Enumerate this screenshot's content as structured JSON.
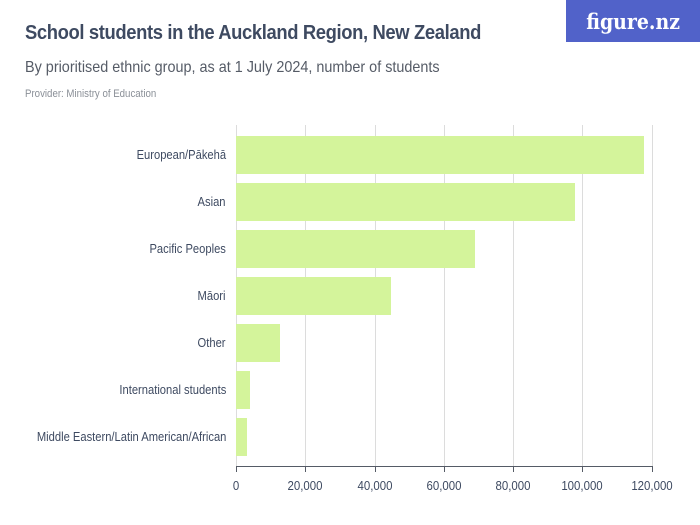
{
  "header": {
    "title": "School students in the Auckland Region, New Zealand",
    "subtitle": "By prioritised ethnic group, as at 1 July 2024, number of students",
    "provider": "Provider: Ministry of Education",
    "logo": "figure.nz"
  },
  "axis": {
    "ticks": [
      "0",
      "20,000",
      "40,000",
      "60,000",
      "80,000",
      "100,000",
      "120,000"
    ]
  },
  "colors": {
    "bar": "#d4f49b",
    "logo_bg": "#5162c9",
    "text": "#3e4a61"
  },
  "chart_data": {
    "type": "bar",
    "orientation": "horizontal",
    "title": "School students in the Auckland Region, New Zealand",
    "subtitle": "By prioritised ethnic group, as at 1 July 2024, number of students",
    "source": "Provider: Ministry of Education",
    "categories": [
      "European/Pākehā",
      "Asian",
      "Pacific Peoples",
      "Māori",
      "Other",
      "International students",
      "Middle Eastern/Latin American/African"
    ],
    "values": [
      117800,
      98000,
      69000,
      44700,
      12700,
      4000,
      3200
    ],
    "xlabel": "",
    "ylabel": "",
    "xlim": [
      0,
      120000
    ],
    "xticks": [
      0,
      20000,
      40000,
      60000,
      80000,
      100000,
      120000
    ],
    "grid": true,
    "legend": null
  }
}
